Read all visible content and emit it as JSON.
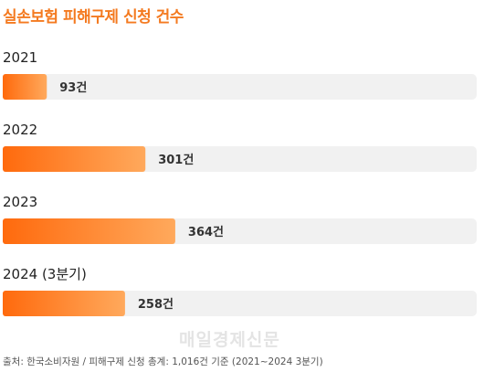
{
  "chart_data": {
    "type": "bar",
    "orientation": "horizontal",
    "title": "실손보험 피해구제 신청 건수",
    "categories": [
      "2021",
      "2022",
      "2023",
      "2024 (3분기)"
    ],
    "values": [
      93,
      301,
      364,
      258
    ],
    "value_labels": [
      "93건",
      "301건",
      "364건",
      "258건"
    ],
    "xlim": [
      0,
      1000
    ],
    "grid": false,
    "legend": "none",
    "colors": {
      "bar_start": "#ff6a0d",
      "bar_end": "#ffa95c",
      "track": "#f1f1f1",
      "title": "#f47a20"
    }
  },
  "watermark": "매일경제신문",
  "source": "출처: 한국소비자원 / 피해구제 신청 총계: 1,016건 기준 (2021~2024 3분기)"
}
